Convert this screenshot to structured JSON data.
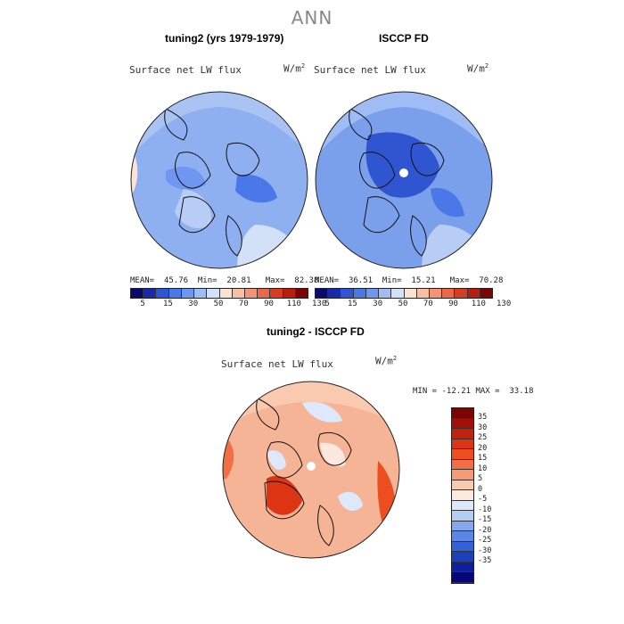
{
  "figure": {
    "title": "ANN"
  },
  "panels": {
    "model": {
      "title": "tuning2 (yrs 1979-1979)",
      "variable": "Surface net LW flux",
      "units": "W/m",
      "units_exp": "2",
      "mean_label": "MEAN=",
      "mean": "45.76",
      "min_label": "Min=",
      "min": "20.81",
      "max_label": "Max=",
      "max": "82.38"
    },
    "obs": {
      "title": "ISCCP FD",
      "variable": "Surface net LW flux",
      "units": "W/m",
      "units_exp": "2",
      "mean_label": "MEAN=",
      "mean": "36.51",
      "min_label": "Min=",
      "min": "15.21",
      "max_label": "Max=",
      "max": "70.28"
    },
    "diff": {
      "title": "tuning2 - ISCCP FD",
      "variable": "Surface net LW flux",
      "units": "W/m",
      "units_exp": "2",
      "min_label": "MIN =",
      "min": "-12.21",
      "max_label": "MAX =",
      "max": "33.18"
    }
  },
  "colorbar_abs": {
    "colors": [
      "#0a0a6e",
      "#1a2aa8",
      "#2f55d0",
      "#4a78e8",
      "#6f96f0",
      "#9fbcf5",
      "#d2e0f8",
      "#fbe3d4",
      "#f7bfa3",
      "#f29475",
      "#e8684a",
      "#d63d22",
      "#b51e10",
      "#7a0505"
    ],
    "ticks": [
      "5",
      "15",
      "30",
      "50",
      "70",
      "90",
      "110",
      "130"
    ]
  },
  "colorbar_diff": {
    "colors": [
      "#7a0505",
      "#a11109",
      "#c4200e",
      "#dd3514",
      "#ec4e22",
      "#f26f45",
      "#f59a76",
      "#f9c9b0",
      "#fbe9df",
      "#dde8fb",
      "#b5ccf5",
      "#86a7ee",
      "#5a86e6",
      "#3461d6",
      "#1a3fc0",
      "#0f1f9a",
      "#060678"
    ],
    "ticks": [
      "35",
      "30",
      "25",
      "20",
      "15",
      "10",
      "5",
      "0",
      "-5",
      "-10",
      "-15",
      "-20",
      "-25",
      "-30",
      "-35"
    ]
  },
  "map_colors": {
    "model_base": "#8fb0f0",
    "obs_base": "#7aa0ec",
    "diff_base": "#f6b497",
    "land_outline": "#111111"
  }
}
